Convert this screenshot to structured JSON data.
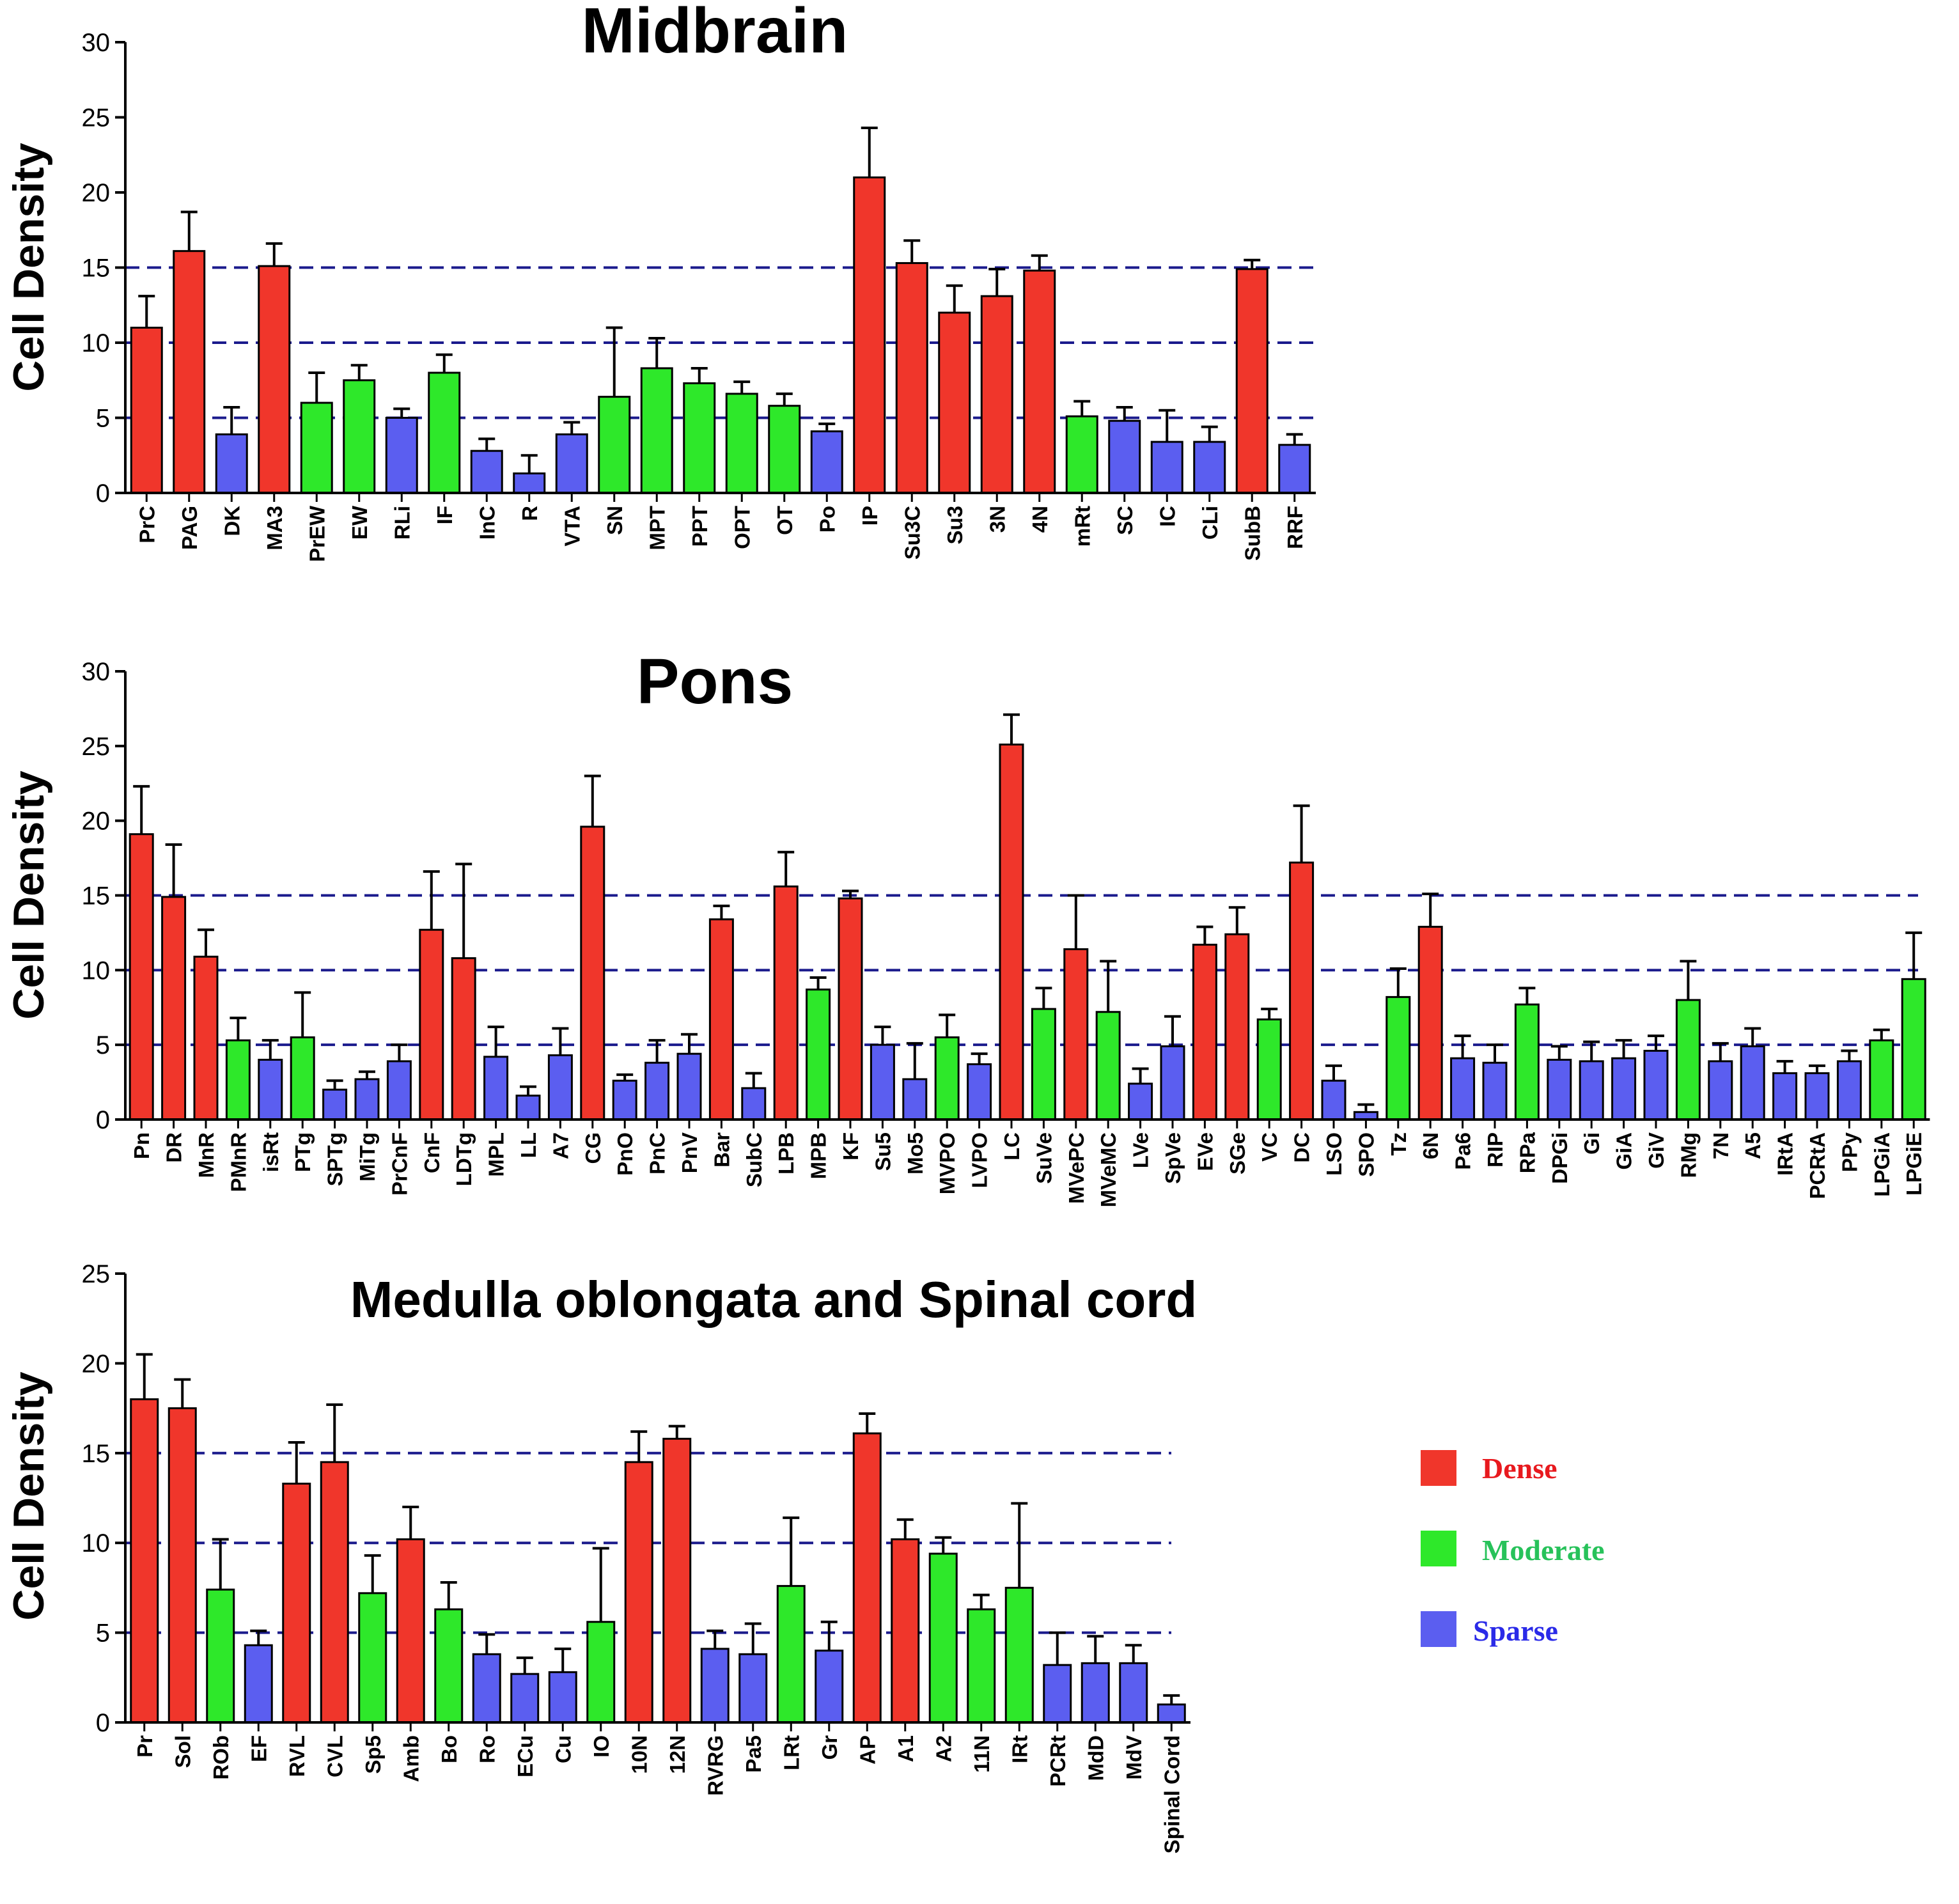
{
  "colors": {
    "Dense": "#f0362b",
    "Moderate": "#2ee82a",
    "Sparse": "#5b5ef0",
    "refline": "#1a1a8c"
  },
  "legend": {
    "items": [
      {
        "label": "Dense",
        "category": "Dense",
        "text_color": "#e8191e"
      },
      {
        "label": "Moderate",
        "category": "Moderate",
        "text_color": "#27c25a"
      },
      {
        "label": "Sparse",
        "category": "Sparse",
        "text_color": "#2a2ae8"
      }
    ]
  },
  "chart_data": [
    {
      "type": "bar",
      "title": "Midbrain",
      "ylabel": "Cell Density",
      "ylim": [
        0,
        30
      ],
      "yticks": [
        0,
        5,
        10,
        15,
        20,
        25,
        30
      ],
      "reference_lines": [
        5,
        10,
        15
      ],
      "categories": [
        "PrC",
        "PAG",
        "DK",
        "MA3",
        "PrEW",
        "EW",
        "RLi",
        "IF",
        "InC",
        "R",
        "VTA",
        "SN",
        "MPT",
        "PPT",
        "OPT",
        "OT",
        "Po",
        "IP",
        "Su3C",
        "Su3",
        "3N",
        "4N",
        "mRt",
        "SC",
        "IC",
        "CLi",
        "SubB",
        "RRF"
      ],
      "values": [
        11,
        16.1,
        3.9,
        15.1,
        6,
        7.5,
        5,
        8,
        2.8,
        1.3,
        3.9,
        6.4,
        8.3,
        7.3,
        6.6,
        5.8,
        4.1,
        21,
        15.3,
        12,
        13.1,
        14.8,
        5.1,
        4.8,
        3.4,
        3.4,
        14.9,
        3.2
      ],
      "errors": [
        2.1,
        2.6,
        1.8,
        1.5,
        2,
        1,
        0.6,
        1.2,
        0.8,
        1.2,
        0.8,
        4.6,
        2,
        1,
        0.8,
        0.8,
        0.5,
        3.3,
        1.5,
        1.8,
        1.8,
        1,
        1,
        0.9,
        2.1,
        1,
        0.6,
        0.7
      ],
      "density_class": [
        "Dense",
        "Dense",
        "Sparse",
        "Dense",
        "Moderate",
        "Moderate",
        "Sparse",
        "Moderate",
        "Sparse",
        "Sparse",
        "Sparse",
        "Moderate",
        "Moderate",
        "Moderate",
        "Moderate",
        "Moderate",
        "Sparse",
        "Dense",
        "Dense",
        "Dense",
        "Dense",
        "Dense",
        "Moderate",
        "Sparse",
        "Sparse",
        "Sparse",
        "Dense",
        "Sparse"
      ]
    },
    {
      "type": "bar",
      "title": "Pons",
      "ylabel": "Cell Density",
      "ylim": [
        0,
        30
      ],
      "yticks": [
        0,
        5,
        10,
        15,
        20,
        25,
        30
      ],
      "reference_lines": [
        5,
        10,
        15
      ],
      "categories": [
        "Pn",
        "DR",
        "MnR",
        "PMnR",
        "isRt",
        "PTg",
        "SPTg",
        "MiTg",
        "PrCnF",
        "CnF",
        "LDTg",
        "MPL",
        "LL",
        "A7",
        "CG",
        "PnO",
        "PnC",
        "PnV",
        "Bar",
        "SubC",
        "LPB",
        "MPB",
        "KF",
        "Su5",
        "Mo5",
        "MVPO",
        "LVPO",
        "LC",
        "SuVe",
        "MVePC",
        "MVeMC",
        "LVe",
        "SpVe",
        "EVe",
        "SGe",
        "VC",
        "DC",
        "LSO",
        "SPO",
        "Tz",
        "6N",
        "Pa6",
        "RIP",
        "RPa",
        "DPGi",
        "Gi",
        "GiA",
        "GiV",
        "RMg",
        "7N",
        "A5",
        "IRtA",
        "PCRtA",
        "PPy",
        "LPGiA",
        "LPGiE"
      ],
      "values": [
        19.1,
        14.9,
        10.9,
        5.3,
        4,
        5.5,
        2,
        2.7,
        3.9,
        12.7,
        10.8,
        4.2,
        1.6,
        4.3,
        19.6,
        2.6,
        3.8,
        4.4,
        13.4,
        2.1,
        15.6,
        8.7,
        14.8,
        5,
        2.7,
        5.5,
        3.7,
        25.1,
        7.4,
        11.4,
        7.2,
        2.4,
        4.9,
        11.7,
        12.4,
        6.7,
        17.2,
        2.6,
        0.5,
        8.2,
        12.9,
        4.1,
        3.8,
        7.7,
        4,
        3.9,
        4.1,
        4.6,
        8,
        3.9,
        4.9,
        3.1,
        3.1,
        3.9,
        5.3,
        9.4
      ],
      "errors": [
        3.2,
        3.5,
        1.8,
        1.5,
        1.3,
        3,
        0.6,
        0.5,
        1.1,
        3.9,
        6.3,
        2,
        0.6,
        1.8,
        3.4,
        0.4,
        1.5,
        1.3,
        0.9,
        1,
        2.3,
        0.8,
        0.5,
        1.2,
        2.4,
        1.5,
        0.7,
        2,
        1.4,
        3.6,
        3.4,
        1,
        2,
        1.2,
        1.8,
        0.7,
        3.8,
        1,
        0.5,
        1.9,
        2.2,
        1.5,
        1.2,
        1.1,
        0.9,
        1.3,
        1.2,
        1,
        2.6,
        1.2,
        1.2,
        0.8,
        0.5,
        0.7,
        0.7,
        3.1
      ],
      "density_class": [
        "Dense",
        "Dense",
        "Dense",
        "Moderate",
        "Sparse",
        "Moderate",
        "Sparse",
        "Sparse",
        "Sparse",
        "Dense",
        "Dense",
        "Sparse",
        "Sparse",
        "Sparse",
        "Dense",
        "Sparse",
        "Sparse",
        "Sparse",
        "Dense",
        "Sparse",
        "Dense",
        "Moderate",
        "Dense",
        "Sparse",
        "Sparse",
        "Moderate",
        "Sparse",
        "Dense",
        "Moderate",
        "Dense",
        "Moderate",
        "Sparse",
        "Sparse",
        "Dense",
        "Dense",
        "Moderate",
        "Dense",
        "Sparse",
        "Sparse",
        "Moderate",
        "Dense",
        "Sparse",
        "Sparse",
        "Moderate",
        "Sparse",
        "Sparse",
        "Sparse",
        "Sparse",
        "Moderate",
        "Sparse",
        "Sparse",
        "Sparse",
        "Sparse",
        "Sparse",
        "Moderate",
        "Moderate"
      ]
    },
    {
      "type": "bar",
      "title": "Medulla oblongata and Spinal cord",
      "ylabel": "Cell Density",
      "ylim": [
        0,
        25
      ],
      "yticks": [
        0,
        5,
        10,
        15,
        20,
        25
      ],
      "reference_lines": [
        5,
        10,
        15
      ],
      "categories": [
        "Pr",
        "Sol",
        "ROb",
        "EF",
        "RVL",
        "CVL",
        "Sp5",
        "Amb",
        "Bo",
        "Ro",
        "ECu",
        "Cu",
        "IO",
        "10N",
        "12N",
        "RVRG",
        "Pa5",
        "LRt",
        "Gr",
        "AP",
        "A1",
        "A2",
        "11N",
        "IRt",
        "PCRt",
        "MdD",
        "MdV",
        "Spinal Cord"
      ],
      "values": [
        18,
        17.5,
        7.4,
        4.3,
        13.3,
        14.5,
        7.2,
        10.2,
        6.3,
        3.8,
        2.7,
        2.8,
        5.6,
        14.5,
        15.8,
        4.1,
        3.8,
        7.6,
        4,
        16.1,
        10.2,
        9.4,
        6.3,
        7.5,
        3.2,
        3.3,
        3.3,
        1
      ],
      "errors": [
        2.5,
        1.6,
        2.8,
        0.8,
        2.3,
        3.2,
        2.1,
        1.8,
        1.5,
        1.1,
        0.9,
        1.3,
        4.1,
        1.7,
        0.7,
        1,
        1.7,
        3.8,
        1.6,
        1.1,
        1.1,
        0.9,
        0.8,
        4.7,
        1.8,
        1.5,
        1,
        0.5
      ],
      "density_class": [
        "Dense",
        "Dense",
        "Moderate",
        "Sparse",
        "Dense",
        "Dense",
        "Moderate",
        "Dense",
        "Moderate",
        "Sparse",
        "Sparse",
        "Sparse",
        "Moderate",
        "Dense",
        "Dense",
        "Sparse",
        "Sparse",
        "Moderate",
        "Sparse",
        "Dense",
        "Dense",
        "Moderate",
        "Moderate",
        "Moderate",
        "Sparse",
        "Sparse",
        "Sparse",
        "Sparse"
      ]
    }
  ]
}
